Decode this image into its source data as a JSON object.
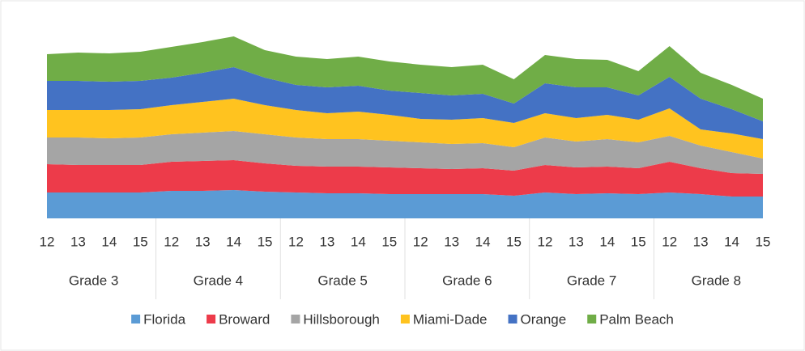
{
  "chart_data": {
    "type": "stacked_area",
    "categories": [
      "12",
      "13",
      "14",
      "15",
      "12",
      "13",
      "14",
      "15",
      "12",
      "13",
      "14",
      "15",
      "12",
      "13",
      "14",
      "15",
      "12",
      "13",
      "14",
      "15",
      "12",
      "13",
      "14",
      "15"
    ],
    "groups": [
      "Grade 3",
      "Grade 4",
      "Grade 5",
      "Grade 6",
      "Grade 7",
      "Grade 8"
    ],
    "series": [
      {
        "name": "Florida",
        "color": "#5b9bd5",
        "values": [
          32,
          32,
          32,
          32,
          34,
          34,
          35,
          33,
          32,
          31,
          31,
          30,
          30,
          30,
          30,
          28,
          32,
          30,
          31,
          30,
          32,
          30,
          27,
          27
        ]
      },
      {
        "name": "Broward",
        "color": "#ed3b4a",
        "values": [
          35,
          34,
          34,
          34,
          36,
          37,
          37,
          35,
          33,
          33,
          33,
          33,
          32,
          31,
          32,
          31,
          34,
          33,
          33,
          32,
          38,
          32,
          29,
          28
        ]
      },
      {
        "name": "Hillsborough",
        "color": "#a5a5a5",
        "values": [
          33,
          34,
          33,
          34,
          34,
          35,
          36,
          36,
          35,
          34,
          34,
          33,
          32,
          31,
          31,
          29,
          34,
          32,
          34,
          32,
          32,
          28,
          26,
          19
        ]
      },
      {
        "name": "Miami-Dade",
        "color": "#ffc31f",
        "values": [
          34,
          34,
          35,
          35,
          36,
          38,
          40,
          36,
          34,
          32,
          34,
          32,
          29,
          30,
          31,
          30,
          30,
          29,
          30,
          28,
          34,
          20,
          23,
          24
        ]
      },
      {
        "name": "Orange",
        "color": "#4472c4",
        "values": [
          36,
          36,
          35,
          35,
          34,
          36,
          39,
          34,
          31,
          32,
          32,
          30,
          32,
          30,
          30,
          24,
          37,
          38,
          34,
          30,
          39,
          38,
          30,
          22
        ]
      },
      {
        "name": "Palm Beach",
        "color": "#70ad47",
        "values": [
          33,
          35,
          35,
          36,
          38,
          38,
          38,
          34,
          35,
          35,
          36,
          36,
          35,
          35,
          36,
          30,
          35,
          35,
          34,
          30,
          38,
          32,
          30,
          28
        ]
      }
    ],
    "ylim": [
      0,
      230
    ]
  }
}
